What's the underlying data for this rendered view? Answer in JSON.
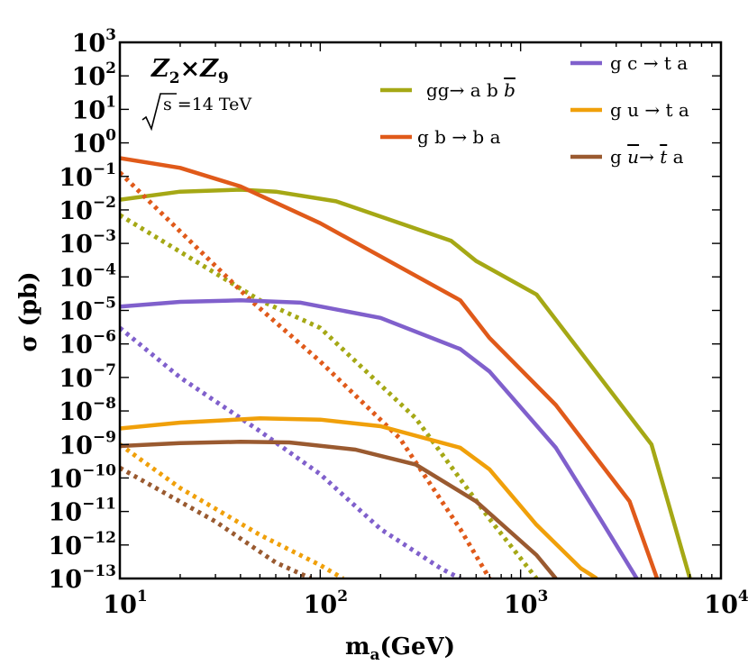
{
  "chart_data": {
    "type": "line",
    "title": "Z2×Z9",
    "title_parts": {
      "z2": "Z",
      "sub2": "2",
      "times": "×",
      "z9": "Z",
      "sub9": "9"
    },
    "energy_label": "s =14 TeV",
    "xlabel": "m",
    "xlabel_sub": "a",
    "xlabel_suffix": "(GeV)",
    "ylabel": "σ (pb)",
    "xscale": "log",
    "yscale": "log",
    "xlim": [
      10,
      10000
    ],
    "ylim": [
      1e-13,
      1000
    ],
    "x_ticks": [
      {
        "value": 10,
        "base": "10",
        "exp": "1"
      },
      {
        "value": 100,
        "base": "10",
        "exp": "2"
      },
      {
        "value": 1000,
        "base": "10",
        "exp": "3"
      },
      {
        "value": 10000,
        "base": "10",
        "exp": "4"
      }
    ],
    "y_ticks": [
      {
        "value": 1000.0,
        "base": "10",
        "exp": "3"
      },
      {
        "value": 100.0,
        "base": "10",
        "exp": "2"
      },
      {
        "value": 10.0,
        "base": "10",
        "exp": "1"
      },
      {
        "value": 1.0,
        "base": "10",
        "exp": "0"
      },
      {
        "value": 0.1,
        "base": "10",
        "exp": "−1"
      },
      {
        "value": 0.01,
        "base": "10",
        "exp": "−2"
      },
      {
        "value": 0.001,
        "base": "10",
        "exp": "−3"
      },
      {
        "value": 0.0001,
        "base": "10",
        "exp": "−4"
      },
      {
        "value": 1e-05,
        "base": "10",
        "exp": "−5"
      },
      {
        "value": 1e-06,
        "base": "10",
        "exp": "−6"
      },
      {
        "value": 1e-07,
        "base": "10",
        "exp": "−7"
      },
      {
        "value": 1e-08,
        "base": "10",
        "exp": "−8"
      },
      {
        "value": 1e-09,
        "base": "10",
        "exp": "−9"
      },
      {
        "value": 1e-10,
        "base": "10",
        "exp": "−10"
      },
      {
        "value": 1e-11,
        "base": "10",
        "exp": "−11"
      },
      {
        "value": 1e-12,
        "base": "10",
        "exp": "−12"
      },
      {
        "value": 1e-13,
        "base": "10",
        "exp": "−13"
      }
    ],
    "legend": [
      {
        "key": "ggabb",
        "parts": [
          {
            "t": "gg→ a b "
          },
          {
            "t": "b",
            "overline": true,
            "italic": true
          }
        ],
        "color": "#a5a815"
      },
      {
        "key": "gbba",
        "parts": [
          {
            "t": "g b → b a"
          }
        ],
        "color": "#e05a1a"
      },
      {
        "key": "gcta",
        "parts": [
          {
            "t": "g c → t a"
          }
        ],
        "color": "#8060cc"
      },
      {
        "key": "guta",
        "parts": [
          {
            "t": "g u → t a"
          }
        ],
        "color": "#f0a00a"
      },
      {
        "key": "gubar",
        "parts": [
          {
            "t": "g "
          },
          {
            "t": "u",
            "overline": true,
            "italic": true
          },
          {
            "t": "→ "
          },
          {
            "t": "t",
            "overline": true,
            "italic": true
          },
          {
            "t": " a"
          }
        ],
        "color": "#9a5a30"
      }
    ],
    "series": [
      {
        "name": "gg→ a b b̄ (solid)",
        "color": "#a5a815",
        "style": "solid",
        "x": [
          10,
          20,
          40,
          60,
          120,
          450,
          600,
          1200,
          4500,
          7000
        ],
        "y": [
          0.02,
          0.035,
          0.04,
          0.035,
          0.018,
          0.0012,
          0.0003,
          3e-05,
          1e-09,
          1e-13
        ]
      },
      {
        "name": "gg→ a b b̄ (dotted)",
        "color": "#a5a815",
        "style": "dotted",
        "x": [
          10,
          50,
          100,
          300,
          700,
          1200
        ],
        "y": [
          0.007,
          2e-05,
          3e-06,
          6e-09,
          6e-12,
          1e-13
        ]
      },
      {
        "name": "g b → b a (solid)",
        "color": "#e05a1a",
        "style": "solid",
        "x": [
          10,
          20,
          40,
          100,
          500,
          700,
          1500,
          3500,
          4800
        ],
        "y": [
          0.35,
          0.18,
          0.05,
          0.004,
          2e-05,
          1.5e-06,
          1.5e-08,
          2e-11,
          1e-13
        ]
      },
      {
        "name": "g b → b a (dotted)",
        "color": "#e05a1a",
        "style": "dotted",
        "x": [
          10,
          45,
          100,
          250,
          500,
          700
        ],
        "y": [
          0.13,
          2e-05,
          3e-07,
          1.5e-09,
          3e-12,
          1e-13
        ]
      },
      {
        "name": "g c → t a (solid)",
        "color": "#8060cc",
        "style": "solid",
        "x": [
          10,
          20,
          40,
          80,
          200,
          500,
          700,
          1500,
          2500,
          3800
        ],
        "y": [
          1.3e-05,
          1.8e-05,
          2e-05,
          1.7e-05,
          6e-06,
          7e-07,
          1.5e-07,
          8e-10,
          6e-12,
          1e-13
        ]
      },
      {
        "name": "g c → t a (dotted)",
        "color": "#8060cc",
        "style": "dotted",
        "x": [
          10,
          20,
          50,
          100,
          200,
          400,
          500
        ],
        "y": [
          3e-06,
          1e-07,
          2.5e-09,
          1.3e-10,
          3e-12,
          2e-13,
          1e-13
        ]
      },
      {
        "name": "g u → t a (solid)",
        "color": "#f0a00a",
        "style": "solid",
        "x": [
          10,
          20,
          50,
          100,
          200,
          500,
          700,
          1200,
          2000,
          2400
        ],
        "y": [
          3e-09,
          4.5e-09,
          6e-09,
          5.5e-09,
          3.5e-09,
          8e-10,
          1.8e-10,
          4e-12,
          2e-13,
          1e-13
        ]
      },
      {
        "name": "g u → t a (dotted)",
        "color": "#f0a00a",
        "style": "dotted",
        "x": [
          10,
          20,
          50,
          100,
          130
        ],
        "y": [
          1e-09,
          5e-11,
          2e-12,
          2.5e-13,
          1e-13
        ]
      },
      {
        "name": "g ū → t̄ a (solid)",
        "color": "#9a5a30",
        "style": "solid",
        "x": [
          10,
          20,
          40,
          70,
          150,
          300,
          600,
          1200,
          1500
        ],
        "y": [
          9e-10,
          1.1e-09,
          1.2e-09,
          1.15e-09,
          7e-10,
          2.5e-10,
          2e-11,
          5e-13,
          1e-13
        ]
      },
      {
        "name": "g ū → t̄ a (dotted)",
        "color": "#9a5a30",
        "style": "dotted",
        "x": [
          10,
          30,
          60,
          90
        ],
        "y": [
          2e-10,
          5e-12,
          3e-13,
          1e-13
        ]
      }
    ]
  }
}
